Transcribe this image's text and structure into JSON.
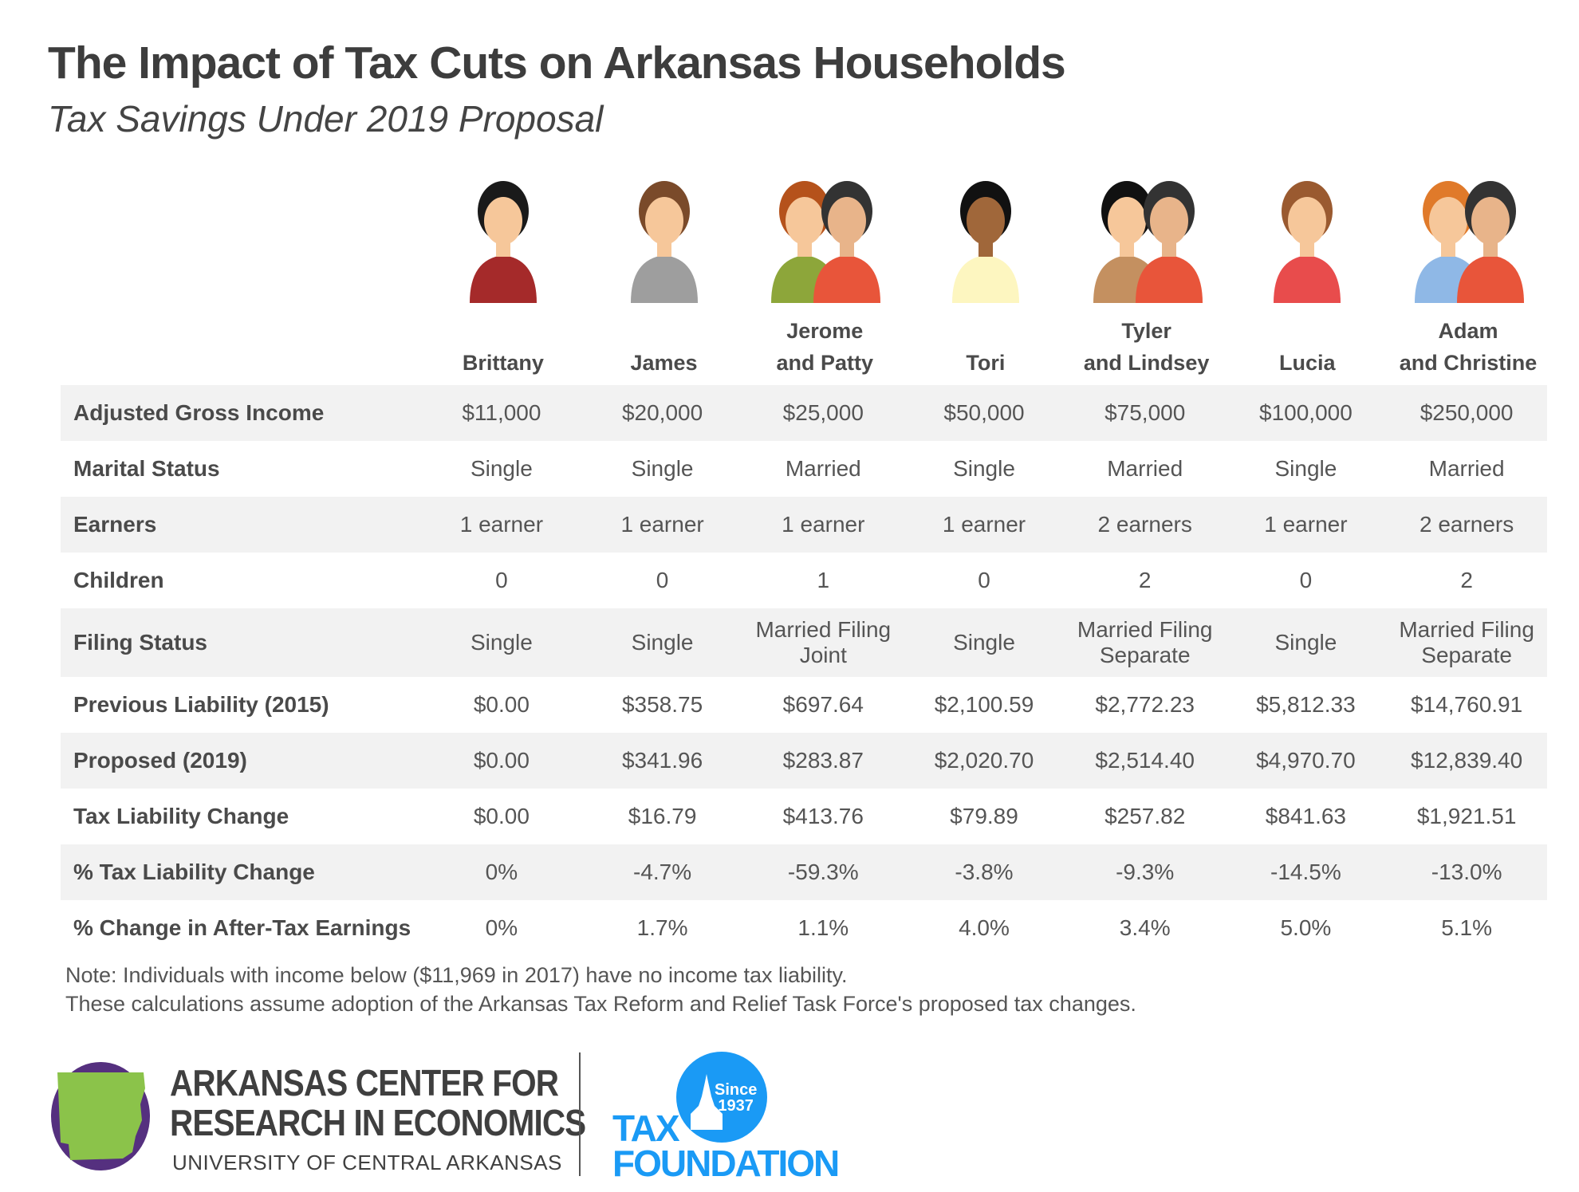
{
  "header": {
    "title": "The Impact of Tax Cuts on Arkansas Households",
    "subtitle": "Tax Savings Under 2019 Proposal"
  },
  "households": [
    {
      "line1": "",
      "line2": "Brittany",
      "avatar": "woman-icon"
    },
    {
      "line1": "",
      "line2": "James",
      "avatar": "man-icon"
    },
    {
      "line1": "Jerome",
      "line2": "and Patty",
      "avatar": "couple-icon"
    },
    {
      "line1": "",
      "line2": "Tori",
      "avatar": "woman-icon"
    },
    {
      "line1": "Tyler",
      "line2": "and Lindsey",
      "avatar": "couple-icon"
    },
    {
      "line1": "",
      "line2": "Lucia",
      "avatar": "woman-icon"
    },
    {
      "line1": "Adam",
      "line2": "and Christine",
      "avatar": "couple-icon"
    }
  ],
  "rows": [
    {
      "label": "Adjusted Gross Income",
      "values": [
        "$11,000",
        "$20,000",
        "$25,000",
        "$50,000",
        "$75,000",
        "$100,000",
        "$250,000"
      ]
    },
    {
      "label": "Marital Status",
      "values": [
        "Single",
        "Single",
        "Married",
        "Single",
        "Married",
        "Single",
        "Married"
      ]
    },
    {
      "label": "Earners",
      "values": [
        "1 earner",
        "1 earner",
        "1 earner",
        "1 earner",
        "2 earners",
        "1 earner",
        "2 earners"
      ]
    },
    {
      "label": "Children",
      "values": [
        "0",
        "0",
        "1",
        "0",
        "2",
        "0",
        "2"
      ]
    },
    {
      "label": "Filing Status",
      "values": [
        "Single",
        "Single",
        "Married Filing Joint",
        "Single",
        "Married Filing Separate",
        "Single",
        "Married Filing Separate"
      ]
    },
    {
      "label": "Previous Liability (2015)",
      "values": [
        "$0.00",
        "$358.75",
        "$697.64",
        "$2,100.59",
        "$2,772.23",
        "$5,812.33",
        "$14,760.91"
      ]
    },
    {
      "label": "Proposed (2019)",
      "values": [
        "$0.00",
        "$341.96",
        "$283.87",
        "$2,020.70",
        "$2,514.40",
        "$4,970.70",
        "$12,839.40"
      ]
    },
    {
      "label": "Tax Liability Change",
      "values": [
        "$0.00",
        "$16.79",
        "$413.76",
        "$79.89",
        "$257.82",
        "$841.63",
        "$1,921.51"
      ]
    },
    {
      "label": "% Tax Liability Change",
      "values": [
        "0%",
        "-4.7%",
        "-59.3%",
        "-3.8%",
        "-9.3%",
        "-14.5%",
        "-13.0%"
      ]
    },
    {
      "label": "% Change in After-Tax Earnings",
      "values": [
        "0%",
        "1.7%",
        "1.1%",
        "4.0%",
        "3.4%",
        "5.0%",
        "5.1%"
      ]
    }
  ],
  "notes": [
    "Note: Individuals with income below ($11,969 in 2017) have no income tax liability.",
    "These calculations assume adoption of the Arkansas Tax Reform and Relief Task Force's proposed tax changes."
  ],
  "logos": {
    "acre_line1": "ARKANSAS CENTER FOR",
    "acre_line2": "RESEARCH IN ECONOMICS",
    "acre_line3": "UNIVERSITY OF CENTRAL ARKANSAS",
    "tf_line1": "TAX",
    "tf_line2": "FOUNDATION",
    "tf_since": "Since",
    "tf_year": "1937"
  },
  "colors": {
    "row_shade": "#f2f2f2",
    "tax_foundation_blue": "#1a9af5",
    "acre_purple": "#55307f",
    "acre_green": "#8bc34a"
  }
}
